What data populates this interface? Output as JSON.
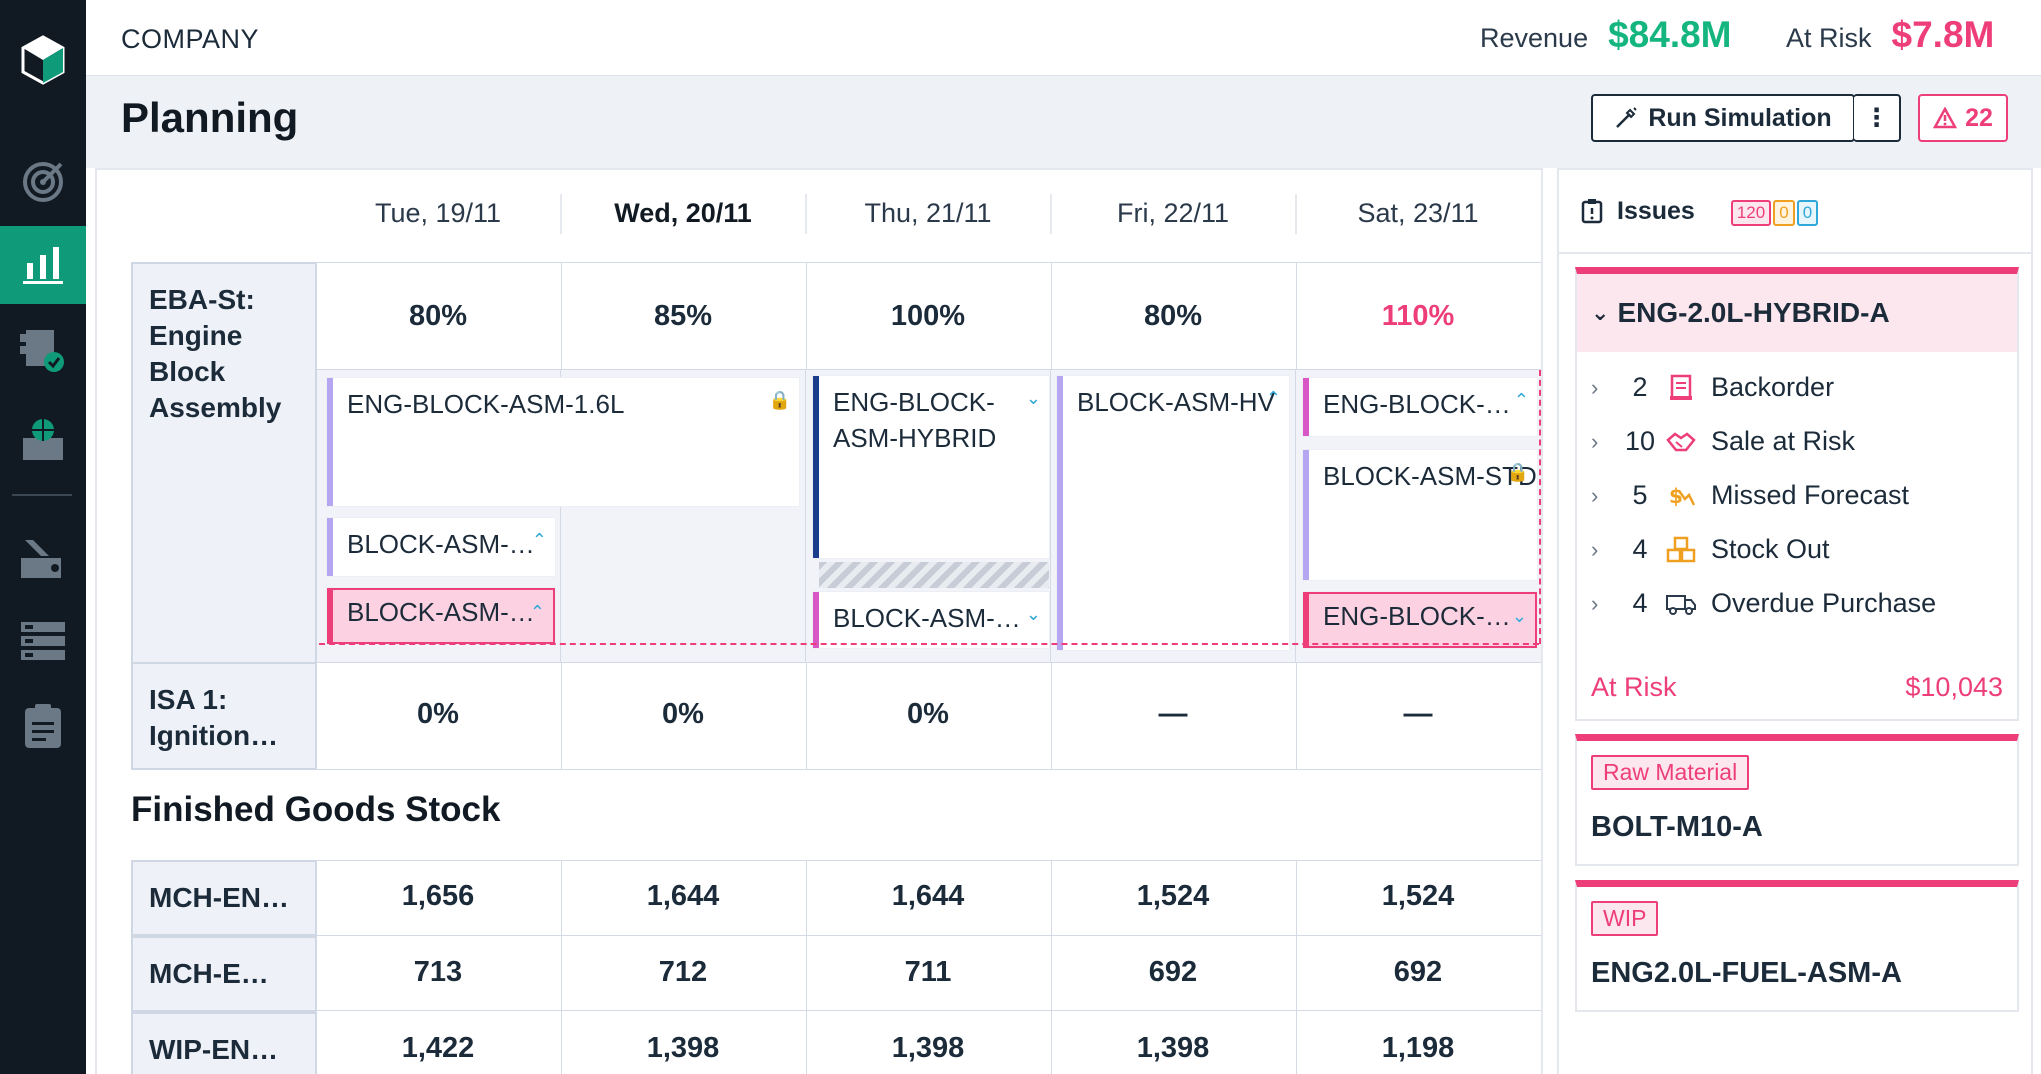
{
  "colors": {
    "accent": "#0f9a7a",
    "brand_green": "#14b57e",
    "risk_pink": "#ee3e7a",
    "dark": "#111a22"
  },
  "sidebar": {
    "icons": [
      "logo-icon",
      "target-icon",
      "bar-chart-icon",
      "checklist-icon",
      "globe-inbox-icon",
      "edit-icon",
      "server-icon",
      "clipboard-icon"
    ]
  },
  "topbar": {
    "company": "COMPANY",
    "revenue_label": "Revenue",
    "revenue_value": "$84.8M",
    "at_risk_label": "At Risk",
    "at_risk_value": "$7.8M"
  },
  "header": {
    "title": "Planning",
    "run_simulation": "Run Simulation",
    "more": "⋮",
    "alerts_count": "22"
  },
  "days": [
    {
      "label": "Tue, 19/11"
    },
    {
      "label": "Wed, 20/11"
    },
    {
      "label": "Thu, 21/11"
    },
    {
      "label": "Fri, 22/11"
    },
    {
      "label": "Sat, 23/11"
    }
  ],
  "workstations": [
    {
      "name": "EBA-St: Engine Block Assembly",
      "loads": [
        "80%",
        "85%",
        "100%",
        "80%",
        "110%"
      ]
    },
    {
      "name": "ISA 1: Ignition…",
      "loads": [
        "0%",
        "0%",
        "0%",
        "—",
        "—"
      ]
    }
  ],
  "jobs": {
    "c1": "ENG-BLOCK-ASM-1.6L",
    "c2": "BLOCK-ASM-…",
    "c3": "BLOCK-ASM-…",
    "c4": "ENG-BLOCK-ASM-HYBRID",
    "c5": "BLOCK-ASM-…",
    "c6": "BLOCK-ASM-HV",
    "c7": "ENG-BLOCK-…",
    "c8": "BLOCK-ASM-STD",
    "c9": "ENG-BLOCK-…"
  },
  "finished_goods": {
    "title": "Finished Goods Stock",
    "rows": [
      {
        "name": "MCH-EN…",
        "values": [
          "1,656",
          "1,644",
          "1,644",
          "1,524",
          "1,524"
        ]
      },
      {
        "name": "MCH-E…",
        "values": [
          "713",
          "712",
          "711",
          "692",
          "692"
        ]
      },
      {
        "name": "WIP-EN…",
        "values": [
          "1,422",
          "1,398",
          "1,398",
          "1,398",
          "1,198"
        ]
      }
    ]
  },
  "issues": {
    "title": "Issues",
    "badges": [
      "120",
      "0",
      "0"
    ],
    "primary": {
      "name": "ENG-2.0L-HYBRID-A",
      "items": [
        {
          "count": "2",
          "label": "Backorder",
          "icon": "document-icon"
        },
        {
          "count": "10",
          "label": "Sale at Risk",
          "icon": "handshake-icon"
        },
        {
          "count": "5",
          "label": "Missed Forecast",
          "icon": "trend-icon"
        },
        {
          "count": "4",
          "label": "Stock Out",
          "icon": "boxes-icon"
        },
        {
          "count": "4",
          "label": "Overdue Purchase",
          "icon": "truck-icon"
        }
      ],
      "at_risk_label": "At Risk",
      "at_risk_value": "$10,043"
    },
    "cards": [
      {
        "tag": "Raw Material",
        "name": "BOLT-M10-A"
      },
      {
        "tag": "WIP",
        "name": "ENG2.0L-FUEL-ASM-A"
      }
    ]
  }
}
